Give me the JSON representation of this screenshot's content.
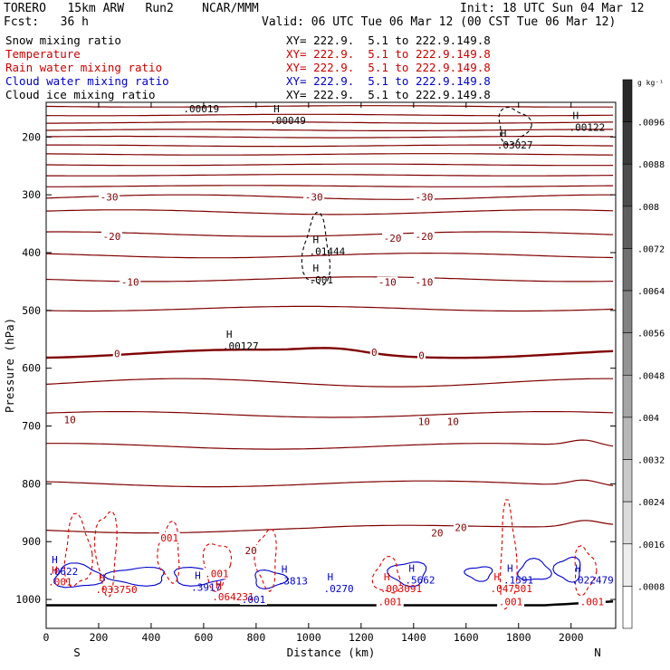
{
  "header": {
    "model": "TORERO   15km ARW   Run2    NCAR/MMM",
    "init": "Init: 18 UTC Sun 04 Mar 12",
    "fcst": "Fcst:   36 h",
    "valid": "Valid: 06 UTC Tue 06 Mar 12 (00 CST Tue 06 Mar 12)"
  },
  "fields": [
    {
      "name": "Snow mixing ratio",
      "color": "#000000"
    },
    {
      "name": "Temperature",
      "color": "#cc0000"
    },
    {
      "name": "Rain water mixing ratio",
      "color": "#cc0000"
    },
    {
      "name": "Cloud water mixing ratio",
      "color": "#0000cc"
    },
    {
      "name": "Cloud ice mixing ratio",
      "color": "#000000"
    }
  ],
  "xy_label": "XY= 222.9.  5.1 to 222.9.149.8",
  "colors": {
    "temperature": "#800000",
    "rain": "#dd0000",
    "cloud_water": "#0000cc",
    "snow_ice": "#000000",
    "ground": "#000000"
  },
  "chart_data": {
    "type": "contour",
    "xlabel": "Distance (km)",
    "ylabel": "Pressure (hPa)",
    "xlim": [
      0,
      2170
    ],
    "ylim": [
      1050,
      140
    ],
    "x_ticks": [
      "0",
      "200",
      "400",
      "600",
      "800",
      "1000",
      "1200",
      "1400",
      "1600",
      "1800",
      "2000"
    ],
    "x_tick_values": [
      0,
      200,
      400,
      600,
      800,
      1000,
      1200,
      1400,
      1600,
      1800,
      2000
    ],
    "y_ticks": [
      "200",
      "300",
      "400",
      "500",
      "600",
      "700",
      "800",
      "900",
      "1000"
    ],
    "y_tick_values": [
      200,
      300,
      400,
      500,
      600,
      700,
      800,
      900,
      1000
    ],
    "end_labels": {
      "left": "S",
      "right": "N"
    },
    "colorbar": {
      "unit": "g kg⁻¹",
      "labels": [
        ".0096",
        ".0088",
        ".008",
        ".0072",
        ".0064",
        ".0056",
        ".0048",
        ".004",
        ".0032",
        ".0024",
        ".0016",
        ".0008"
      ],
      "values": [
        0.0096,
        0.0088,
        0.008,
        0.0072,
        0.0064,
        0.0056,
        0.0048,
        0.004,
        0.0032,
        0.0024,
        0.0016,
        0.0008
      ],
      "steps": 13
    },
    "temperature_isotherms": [
      {
        "p": 147,
        "value": null
      },
      {
        "p": 162,
        "value": null
      },
      {
        "p": 175,
        "value": null
      },
      {
        "p": 188,
        "value": null
      },
      {
        "p": 200,
        "value": null
      },
      {
        "p": 215,
        "value": null
      },
      {
        "p": 230,
        "value": null
      },
      {
        "p": 248,
        "value": null
      },
      {
        "p": 266,
        "value": null
      },
      {
        "p": 285,
        "value": null
      },
      {
        "p": 304,
        "value": -30
      },
      {
        "p": 330,
        "value": null
      },
      {
        "p": 368,
        "value": -20
      },
      {
        "p": 405,
        "value": null
      },
      {
        "p": 446,
        "value": -10
      },
      {
        "p": 497,
        "value": null
      },
      {
        "p": 575,
        "value": 0
      },
      {
        "p": 625,
        "value": null
      },
      {
        "p": 680,
        "value": 10
      },
      {
        "p": 735,
        "value": null
      },
      {
        "p": 800,
        "value": null
      },
      {
        "p": 880,
        "value": 20
      }
    ],
    "contour_labels": [
      {
        "x": 240,
        "p": 304,
        "text": "-30",
        "field": "temperature"
      },
      {
        "x": 1020,
        "p": 304,
        "text": "-30",
        "field": "temperature"
      },
      {
        "x": 1440,
        "p": 304,
        "text": "-30",
        "field": "temperature"
      },
      {
        "x": 250,
        "p": 372,
        "text": "-20",
        "field": "temperature"
      },
      {
        "x": 1320,
        "p": 375,
        "text": "-20",
        "field": "temperature"
      },
      {
        "x": 1440,
        "p": 372,
        "text": "-20",
        "field": "temperature"
      },
      {
        "x": 320,
        "p": 451,
        "text": "-10",
        "field": "temperature"
      },
      {
        "x": 1300,
        "p": 451,
        "text": "-10",
        "field": "temperature"
      },
      {
        "x": 1440,
        "p": 451,
        "text": "-10",
        "field": "temperature"
      },
      {
        "x": 270,
        "p": 575,
        "text": "0",
        "field": "temperature"
      },
      {
        "x": 1250,
        "p": 572,
        "text": "0",
        "field": "temperature"
      },
      {
        "x": 1430,
        "p": 578,
        "text": "0",
        "field": "temperature"
      },
      {
        "x": 90,
        "p": 689,
        "text": "10",
        "field": "temperature"
      },
      {
        "x": 1440,
        "p": 692,
        "text": "10",
        "field": "temperature"
      },
      {
        "x": 1550,
        "p": 692,
        "text": "10",
        "field": "temperature"
      },
      {
        "x": 1490,
        "p": 885,
        "text": "20",
        "field": "temperature"
      },
      {
        "x": 1580,
        "p": 875,
        "text": "20",
        "field": "temperature"
      },
      {
        "x": 780,
        "p": 915,
        "text": "20",
        "field": "temperature"
      },
      {
        "x": 470,
        "p": 893,
        "text": "001",
        "field": "rain"
      },
      {
        "x": 650,
        "p": 955,
        "text": ".001",
        "field": "rain"
      },
      {
        "x": 790,
        "p": 1000,
        "text": ".001",
        "field": "cloud_water"
      },
      {
        "x": 1310,
        "p": 1004,
        "text": ".001",
        "field": "rain"
      },
      {
        "x": 1770,
        "p": 1004,
        "text": ".001",
        "field": "rain"
      },
      {
        "x": 2080,
        "p": 1004,
        "text": ".001",
        "field": "rain"
      }
    ],
    "extrema": [
      {
        "x": 550,
        "p": 140,
        "label": ".00019",
        "field": "snow_ice"
      },
      {
        "x": 880,
        "p": 160,
        "label": ".00049",
        "field": "snow_ice"
      },
      {
        "x": 2020,
        "p": 172,
        "label": ".00122",
        "field": "snow_ice"
      },
      {
        "x": 1745,
        "p": 203,
        "label": ".03027",
        "field": "snow_ice"
      },
      {
        "x": 1030,
        "p": 387,
        "label": ".01444",
        "field": "snow_ice"
      },
      {
        "x": 1030,
        "p": 436,
        "label": ".001",
        "field": "snow_ice"
      },
      {
        "x": 700,
        "p": 550,
        "label": ".00127",
        "field": "snow_ice"
      },
      {
        "x": 35,
        "p": 940,
        "label": ".0622",
        "field": "cloud_water"
      },
      {
        "x": 35,
        "p": 958,
        "label": ".001",
        "field": "rain"
      },
      {
        "x": 215,
        "p": 972,
        "label": ".033750",
        "field": "rain"
      },
      {
        "x": 580,
        "p": 968,
        "label": ".3917",
        "field": "cloud_water"
      },
      {
        "x": 660,
        "p": 984,
        "label": ".064231",
        "field": "rain"
      },
      {
        "x": 910,
        "p": 957,
        "label": ".3813",
        "field": "cloud_water"
      },
      {
        "x": 1085,
        "p": 970,
        "label": ".0270",
        "field": "cloud_water"
      },
      {
        "x": 1300,
        "p": 970,
        "label": ".003091",
        "field": "rain"
      },
      {
        "x": 1395,
        "p": 955,
        "label": ".5662",
        "field": "cloud_water"
      },
      {
        "x": 1720,
        "p": 970,
        "label": ".047301",
        "field": "rain"
      },
      {
        "x": 1770,
        "p": 955,
        "label": ".1591",
        "field": "cloud_water"
      },
      {
        "x": 2030,
        "p": 955,
        "label": ".022479",
        "field": "cloud_water"
      }
    ]
  }
}
